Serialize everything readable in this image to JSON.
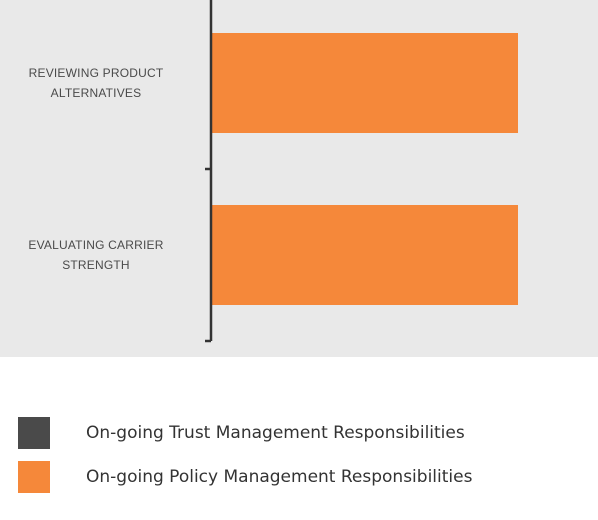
{
  "chart_data": {
    "type": "bar",
    "orientation": "horizontal",
    "categories": [
      [
        "REVIEWING PRODUCT",
        "ALTERNATIVES"
      ],
      [
        "EVALUATING CARRIER",
        "STRENGTH"
      ]
    ],
    "series": [
      {
        "name": "On-going Policy Management Responsibilities",
        "color": "#f5883a",
        "values": [
          1,
          1
        ]
      }
    ],
    "xlim": [
      0,
      1.0
    ],
    "axis_color": "#333333",
    "grid": false
  },
  "legend": {
    "items": [
      {
        "label": "On-going Trust Management Responsibilities",
        "color": "#4a4a4a"
      },
      {
        "label": "On-going Policy Management Responsibilities",
        "color": "#f5883a"
      }
    ]
  },
  "colors": {
    "plot_background": "#e9e9e9",
    "page_background": "#ffffff"
  }
}
